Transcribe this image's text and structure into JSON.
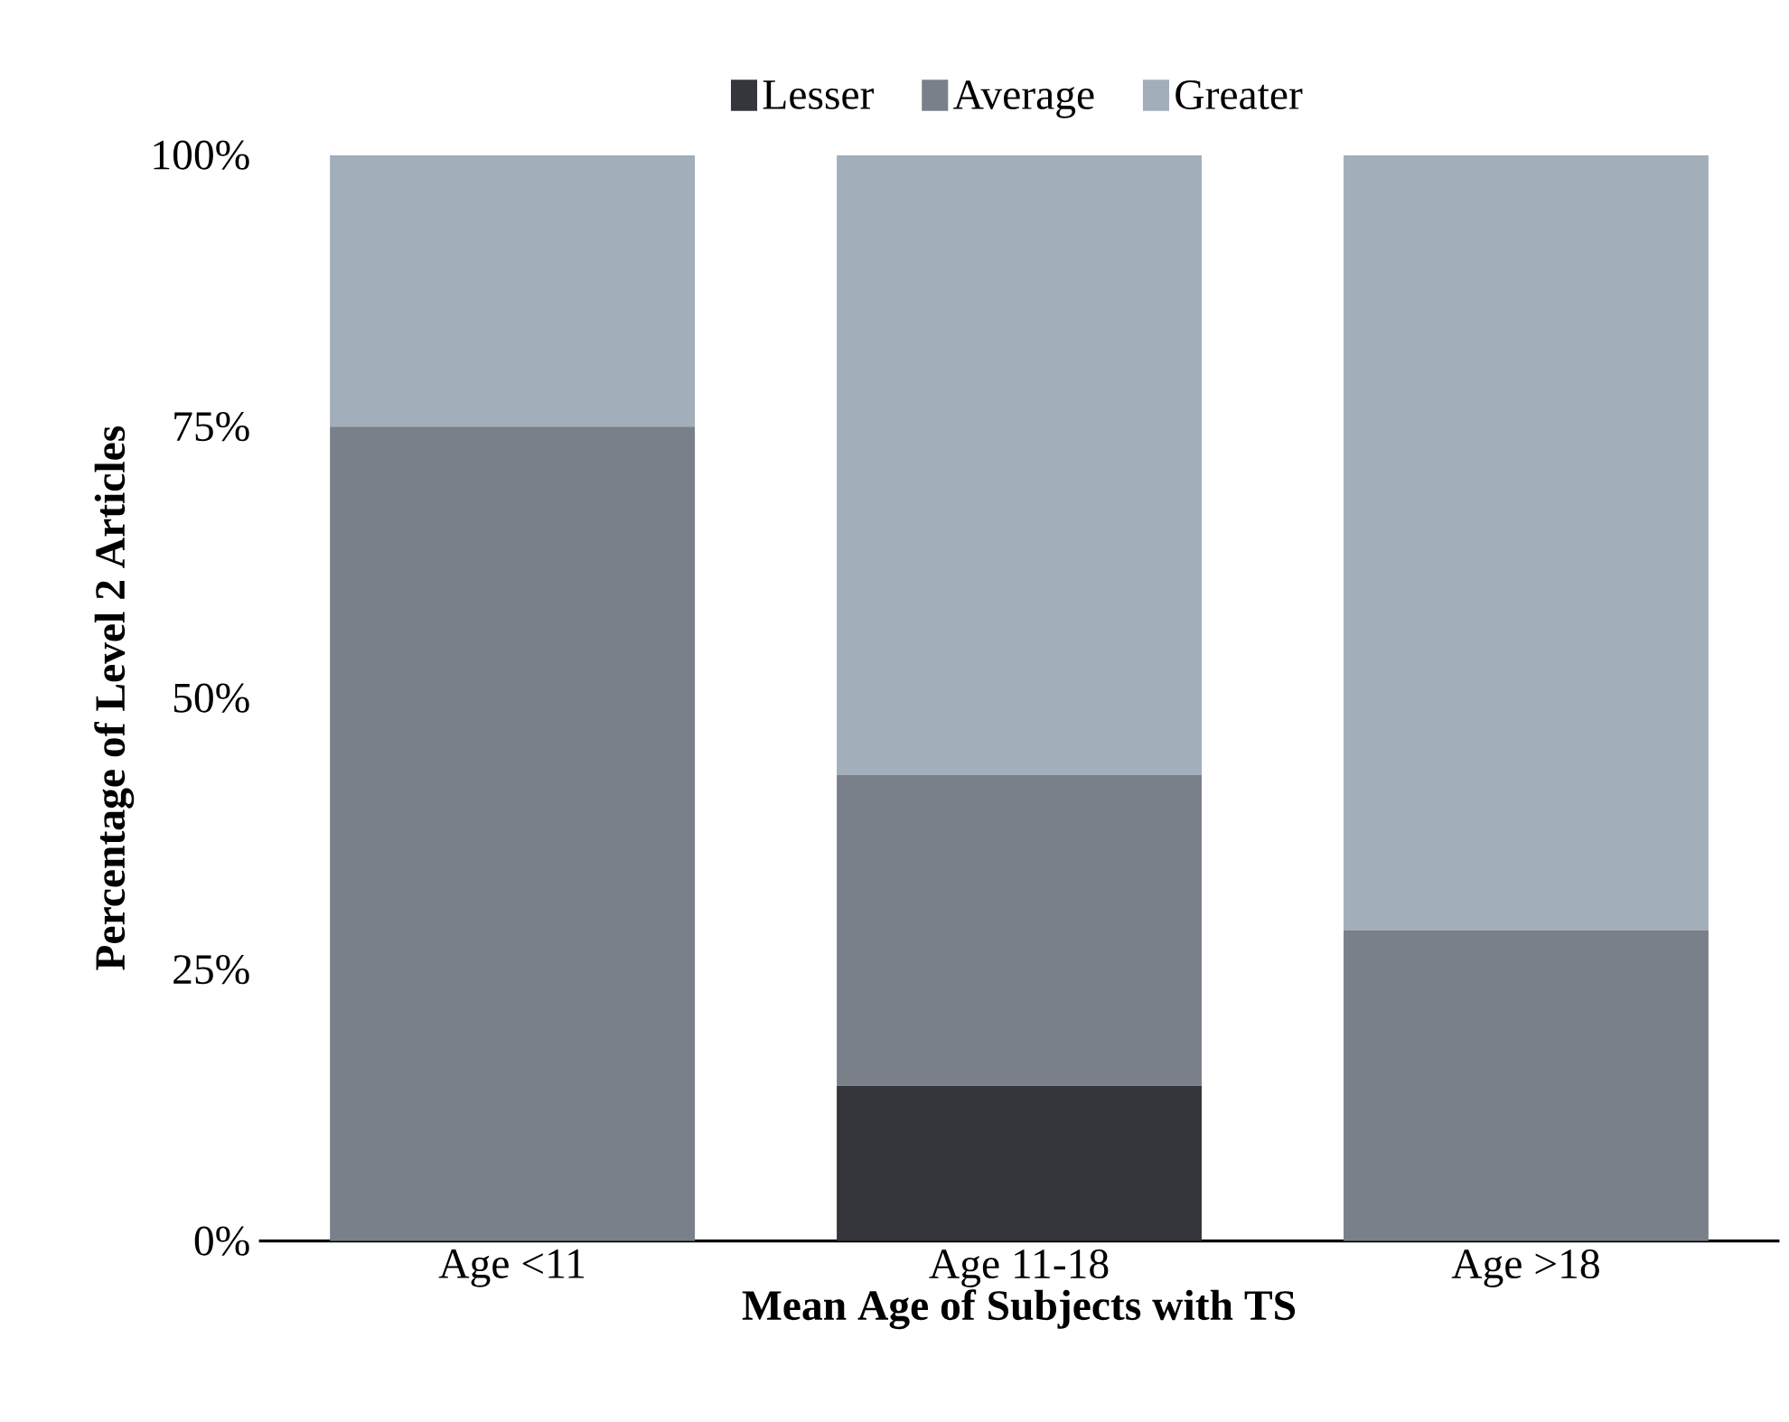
{
  "chart_data": {
    "type": "bar",
    "stacked": true,
    "xlabel": "Mean Age of Subjects with TS",
    "ylabel": "Percentage of Level 2 Articles",
    "categories": [
      "Age <11",
      "Age 11-18",
      "Age >18"
    ],
    "series": [
      {
        "name": "Lesser",
        "color": "#35363b",
        "values": [
          0,
          14.3,
          0
        ]
      },
      {
        "name": "Average",
        "color": "#7a8089",
        "values": [
          75,
          28.6,
          28.6
        ]
      },
      {
        "name": "Greater",
        "color": "#a3aebb",
        "values": [
          25,
          57.1,
          71.4
        ]
      }
    ],
    "ylim": [
      0,
      100
    ],
    "yticks": [
      {
        "value": 0,
        "label": "0%"
      },
      {
        "value": 25,
        "label": "25%"
      },
      {
        "value": 50,
        "label": "50%"
      },
      {
        "value": 75,
        "label": "75%"
      },
      {
        "value": 100,
        "label": "100%"
      }
    ],
    "legend": "top"
  }
}
